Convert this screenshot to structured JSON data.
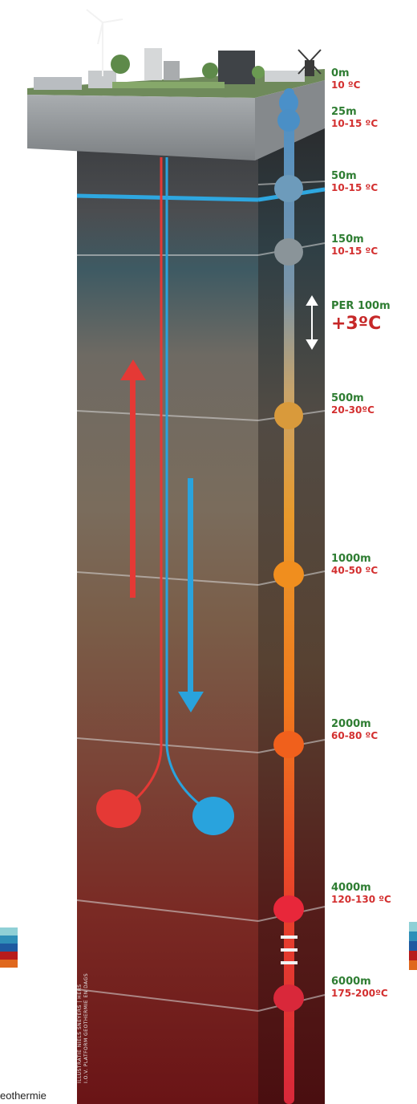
{
  "colors": {
    "depth_label": "#2e7d32",
    "temp_label": "#d32f2f",
    "hot_pipe": "#e53935",
    "cold_pipe": "#29a3dd"
  },
  "icons": [
    "wind-turbine-icon",
    "windmill-icon",
    "double-arrow-icon"
  ],
  "markers": [
    {
      "depth": "0m",
      "temp": "10 ºC"
    },
    {
      "depth": "25m",
      "temp": "10-15 ºC"
    },
    {
      "depth": "50m",
      "temp": "10-15 ºC"
    },
    {
      "depth": "150m",
      "temp": "10-15 ºC"
    },
    {
      "depth": "500m",
      "temp": "20-30ºC"
    },
    {
      "depth": "1000m",
      "temp": "40-50 ºC"
    },
    {
      "depth": "2000m",
      "temp": "60-80 ºC"
    },
    {
      "depth": "4000m",
      "temp": "120-130 ºC"
    },
    {
      "depth": "6000m",
      "temp": "175-200ºC"
    }
  ],
  "gradient": {
    "per": "PER 100m",
    "value": "+3ºC"
  },
  "credit": {
    "line1": "ILLUSTRATIE NIELS SNEYERS | HERS",
    "line2": "I.O.V. PLATFORM GEOTHERMIE EN DAGS"
  },
  "caption": "eothermie"
}
